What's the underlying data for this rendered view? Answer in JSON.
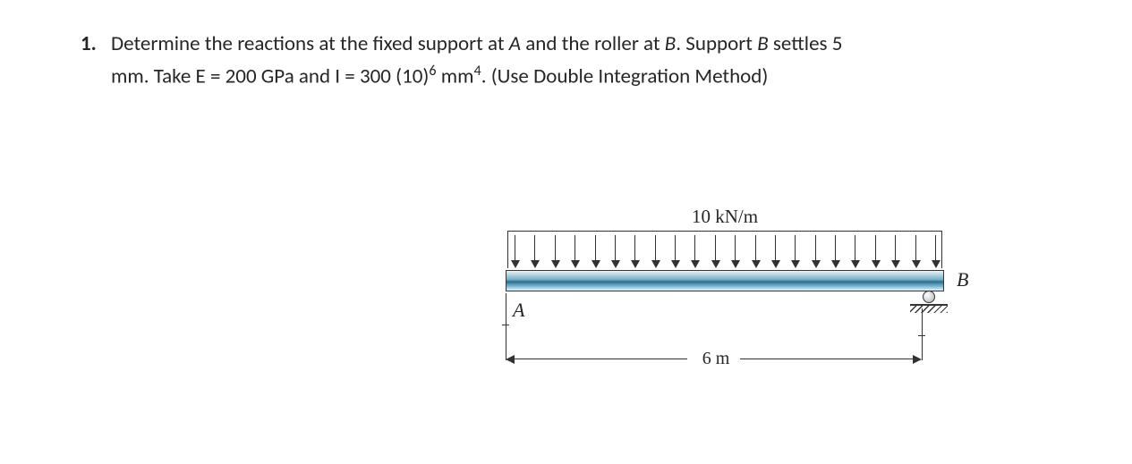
{
  "problem": {
    "number": "1.",
    "line1_a": "Determine the reactions at the fixed support at ",
    "line1_b": " and the roller at ",
    "line1_c": ". Support ",
    "line1_d": " settles 5",
    "ref_A": "A",
    "ref_B": "B",
    "ref_B2": "B",
    "line2_a": "mm. Take E = 200 GPa and I = 300 (10)",
    "exp": "6",
    "line2_b": " mm",
    "exp2": "4",
    "line2_c": ". (Use Double Integration Method)"
  },
  "figure": {
    "load_label": "10 kN/m",
    "label_A": "A",
    "label_B": "B",
    "span_label": "6 m",
    "num_arrows": 22,
    "colors": {
      "beam_top": "#eaf3f8",
      "beam_mid": "#2d6d8c",
      "line": "#323232",
      "background": "#ffffff"
    },
    "dimensions": {
      "span_m": 6,
      "load_kN_per_m": 10,
      "settlement_mm": 5,
      "E_GPa": 200,
      "I_mm4": 300000000
    }
  }
}
